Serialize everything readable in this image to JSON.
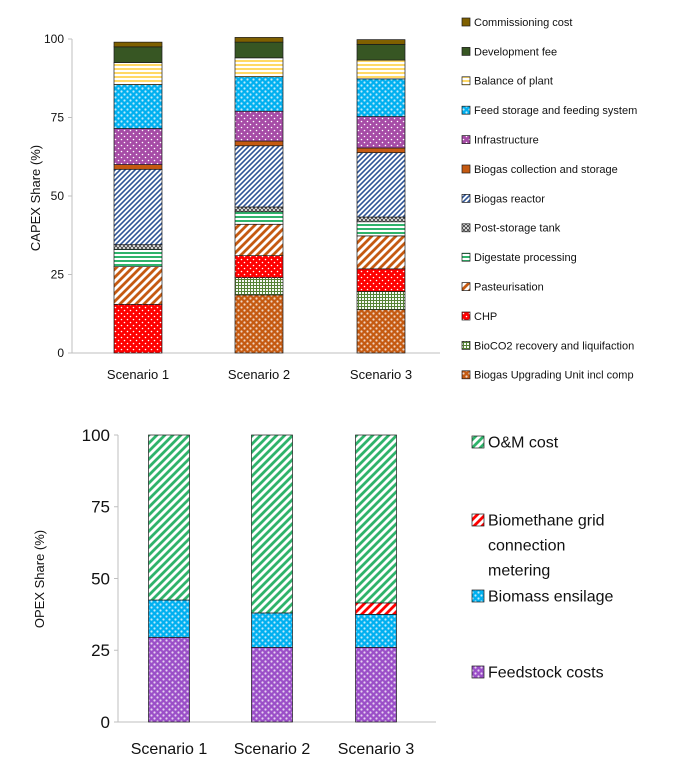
{
  "chart_data": [
    {
      "type": "bar",
      "stacked": true,
      "ylabel": "CAPEX Share (%)",
      "ylim": [
        0,
        100
      ],
      "yticks": [
        0,
        25,
        50,
        75,
        100
      ],
      "grid": false,
      "legend_position": "right",
      "categories": [
        "Scenario 1",
        "Scenario 2",
        "Scenario 3"
      ],
      "series": [
        {
          "name": "Biogas Upgrading Unit incl comp",
          "color": "#c55a11",
          "pattern": "dots-dense",
          "values": [
            0,
            18.5,
            13.8
          ]
        },
        {
          "name": "BioCO2 recovery and liquifaction",
          "color": "#548235",
          "pattern": "grid",
          "values": [
            0,
            5.5,
            5.8
          ]
        },
        {
          "name": "CHP",
          "color": "#ff0000",
          "pattern": "dots",
          "values": [
            15.5,
            7.0,
            7.2
          ]
        },
        {
          "name": "Pasteurisation",
          "color": "#c55a11",
          "pattern": "diag-wide",
          "values": [
            12.0,
            10.0,
            10.5
          ]
        },
        {
          "name": "Digestate processing",
          "color": "#2fb36b",
          "pattern": "hstripe",
          "values": [
            5.5,
            4.0,
            4.5
          ]
        },
        {
          "name": "Post-storage tank",
          "color": "#404040",
          "pattern": "cross",
          "values": [
            1.5,
            1.5,
            1.5
          ]
        },
        {
          "name": "Biogas reactor",
          "color": "#2f5597",
          "pattern": "diag",
          "values": [
            24.0,
            19.5,
            20.5
          ]
        },
        {
          "name": "Biogas collection and storage",
          "color": "#c55a11",
          "pattern": "solid",
          "values": [
            1.5,
            1.5,
            1.5
          ]
        },
        {
          "name": "Infrastructure",
          "color": "#a64ca6",
          "pattern": "dots",
          "values": [
            11.5,
            9.5,
            10.0
          ]
        },
        {
          "name": "Feed storage and feeding system",
          "color": "#00b0f0",
          "pattern": "dots-dense",
          "values": [
            14.0,
            11.0,
            12.0
          ]
        },
        {
          "name": "Balance of plant",
          "color": "#ffd966",
          "pattern": "hstripe",
          "values": [
            7.0,
            6.0,
            6.0
          ]
        },
        {
          "name": "Development fee",
          "color": "#375623",
          "pattern": "solid",
          "values": [
            5.0,
            5.0,
            5.0
          ]
        },
        {
          "name": "Commissioning cost",
          "color": "#7f6000",
          "pattern": "solid",
          "values": [
            1.5,
            1.5,
            1.5
          ]
        }
      ]
    },
    {
      "type": "bar",
      "stacked": true,
      "ylabel": "OPEX Share (%)",
      "ylim": [
        0,
        100
      ],
      "yticks": [
        0,
        25,
        50,
        75,
        100
      ],
      "grid": false,
      "legend_position": "right",
      "categories": [
        "Scenario 1",
        "Scenario 2",
        "Scenario 3"
      ],
      "series": [
        {
          "name": "Feedstock costs",
          "color": "#9b4fc8",
          "pattern": "dots-dense",
          "values": [
            29.5,
            26.0,
            26.0
          ]
        },
        {
          "name": "Biomass ensilage",
          "color": "#00b0f0",
          "pattern": "dots-dense",
          "values": [
            13.0,
            12.0,
            11.5
          ]
        },
        {
          "name": "Biomethane grid connection metering",
          "color": "#ff0000",
          "pattern": "diag-wide",
          "values": [
            0,
            0,
            4.0
          ]
        },
        {
          "name": "O&M cost",
          "color": "#2fb36b",
          "pattern": "diag-wide",
          "values": [
            57.5,
            62.0,
            58.5
          ]
        }
      ]
    }
  ]
}
